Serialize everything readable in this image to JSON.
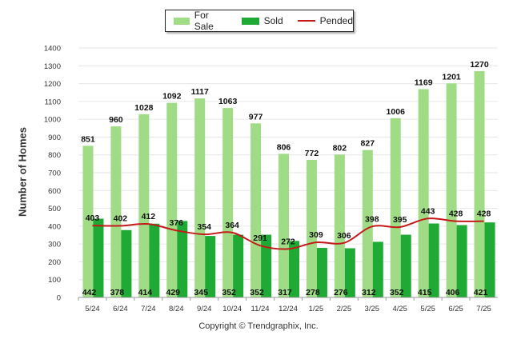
{
  "legend": {
    "for_sale": "For Sale",
    "sold": "Sold",
    "pended": "Pended"
  },
  "colors": {
    "for_sale": "#9fdc85",
    "sold": "#1eaa34",
    "pended": "#c41a1a"
  },
  "copyright": "Copyright © Trendgraphix, Inc.",
  "chart_data": {
    "type": "bar",
    "title": "",
    "xlabel": "",
    "ylabel": "Number of Homes",
    "ylim": [
      0,
      1400
    ],
    "yticks": [
      0,
      100,
      200,
      300,
      400,
      500,
      600,
      700,
      800,
      900,
      1000,
      1100,
      1200,
      1300,
      1400
    ],
    "grid": true,
    "legend_position": "top-center",
    "categories": [
      "5/24",
      "6/24",
      "7/24",
      "8/24",
      "9/24",
      "10/24",
      "11/24",
      "12/24",
      "1/25",
      "2/25",
      "3/25",
      "4/25",
      "5/25",
      "6/25",
      "7/25"
    ],
    "series": [
      {
        "name": "For Sale",
        "kind": "bar",
        "values": [
          851,
          960,
          1028,
          1092,
          1117,
          1063,
          977,
          806,
          772,
          802,
          827,
          1006,
          1169,
          1201,
          1270
        ]
      },
      {
        "name": "Sold",
        "kind": "bar",
        "values": [
          442,
          378,
          414,
          429,
          345,
          352,
          352,
          317,
          278,
          276,
          312,
          352,
          415,
          406,
          421
        ]
      },
      {
        "name": "Pended",
        "kind": "line",
        "values": [
          403,
          402,
          412,
          376,
          354,
          364,
          291,
          272,
          309,
          306,
          398,
          395,
          443,
          428,
          428
        ]
      }
    ]
  }
}
